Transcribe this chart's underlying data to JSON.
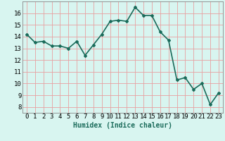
{
  "x": [
    0,
    1,
    2,
    3,
    4,
    5,
    6,
    7,
    8,
    9,
    10,
    11,
    12,
    13,
    14,
    15,
    16,
    17,
    18,
    19,
    20,
    21,
    22,
    23
  ],
  "y": [
    14.2,
    13.5,
    13.6,
    13.2,
    13.2,
    13.0,
    13.6,
    12.4,
    13.3,
    14.2,
    15.3,
    15.4,
    15.3,
    16.5,
    15.8,
    15.8,
    14.4,
    13.7,
    10.3,
    10.5,
    9.5,
    10.0,
    8.2,
    9.2
  ],
  "line_color": "#1a6b5a",
  "marker": "D",
  "marker_size": 2,
  "bg_color": "#d8f5f0",
  "grid_color": "#e8a0a0",
  "xlabel": "Humidex (Indice chaleur)",
  "ylim": [
    7.5,
    17
  ],
  "xlim": [
    -0.5,
    23.5
  ],
  "yticks": [
    8,
    9,
    10,
    11,
    12,
    13,
    14,
    15,
    16
  ],
  "xtick_labels": [
    "0",
    "1",
    "2",
    "3",
    "4",
    "5",
    "6",
    "7",
    "8",
    "9",
    "10",
    "11",
    "12",
    "13",
    "14",
    "15",
    "16",
    "17",
    "18",
    "19",
    "20",
    "21",
    "22",
    "23"
  ],
  "xlabel_fontsize": 7,
  "tick_fontsize": 6.5,
  "line_width": 1.2
}
